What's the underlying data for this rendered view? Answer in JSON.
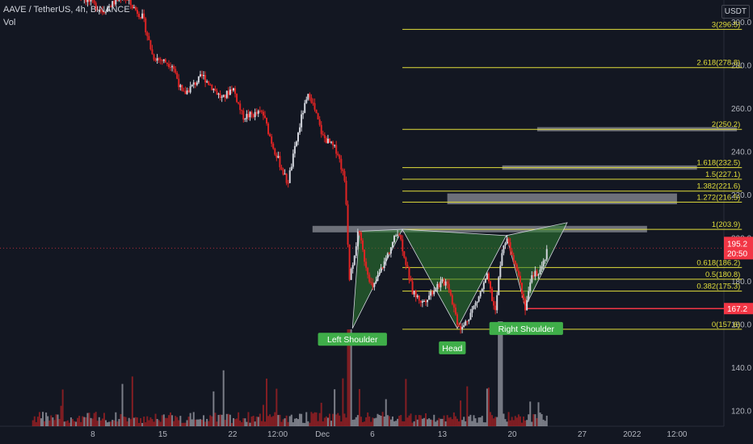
{
  "header": {
    "symbol_line": "AAVE / TetherUS, 4h, BINANCE",
    "vol_label": "Vol",
    "currency": "USDT"
  },
  "colors": {
    "bg": "#131722",
    "up": "#d1d4dc",
    "down": "#e02424",
    "fib": "#e3df3b",
    "pattern_fill": "#2e7d32",
    "pattern_stroke": "#d1d4dc",
    "label_green": "#3fae49",
    "red_line": "#f23645",
    "axis_text": "#b2b5be",
    "grey_box": "#8c8f97"
  },
  "chart_data": {
    "type": "candlestick",
    "y_axis": {
      "min": 116,
      "max": 306,
      "ticks": [
        120,
        140,
        160,
        180,
        200,
        220,
        240,
        260,
        280,
        300
      ]
    },
    "x_axis": {
      "labels": [
        {
          "text": "8",
          "day": 8
        },
        {
          "text": "15",
          "day": 15
        },
        {
          "text": "22",
          "day": 22
        },
        {
          "text": "12:00",
          "day": 26.5
        },
        {
          "text": "Dec",
          "day": 31
        },
        {
          "text": "6",
          "day": 36
        },
        {
          "text": "13",
          "day": 43
        },
        {
          "text": "20",
          "day": 50
        },
        {
          "text": "27",
          "day": 57
        },
        {
          "text": "2022",
          "day": 62
        },
        {
          "text": "12:00",
          "day": 66.5
        }
      ]
    },
    "price_path": [
      {
        "day": 2,
        "price": 320
      },
      {
        "day": 5,
        "price": 318
      },
      {
        "day": 9,
        "price": 305
      },
      {
        "day": 11,
        "price": 312
      },
      {
        "day": 13,
        "price": 302
      },
      {
        "day": 14,
        "price": 284
      },
      {
        "day": 16,
        "price": 280
      },
      {
        "day": 17,
        "price": 266
      },
      {
        "day": 19,
        "price": 275
      },
      {
        "day": 21,
        "price": 264
      },
      {
        "day": 22,
        "price": 270
      },
      {
        "day": 23,
        "price": 256
      },
      {
        "day": 25,
        "price": 258
      },
      {
        "day": 26,
        "price": 243
      },
      {
        "day": 27.5,
        "price": 225
      },
      {
        "day": 29,
        "price": 258
      },
      {
        "day": 29.7,
        "price": 267
      },
      {
        "day": 31,
        "price": 247
      },
      {
        "day": 32.5,
        "price": 240
      },
      {
        "day": 33.3,
        "price": 225
      },
      {
        "day": 33.7,
        "price": 180
      },
      {
        "day": 34.6,
        "price": 203
      },
      {
        "day": 35.2,
        "price": 190
      },
      {
        "day": 36,
        "price": 176
      },
      {
        "day": 37.5,
        "price": 192
      },
      {
        "day": 38.6,
        "price": 203.9
      },
      {
        "day": 40,
        "price": 175
      },
      {
        "day": 41,
        "price": 170
      },
      {
        "day": 42.5,
        "price": 178
      },
      {
        "day": 43.5,
        "price": 180
      },
      {
        "day": 44.5,
        "price": 161
      },
      {
        "day": 45,
        "price": 158
      },
      {
        "day": 46.5,
        "price": 171
      },
      {
        "day": 47.5,
        "price": 182
      },
      {
        "day": 48.3,
        "price": 165
      },
      {
        "day": 48.8,
        "price": 188
      },
      {
        "day": 49.4,
        "price": 201
      },
      {
        "day": 50.5,
        "price": 186
      },
      {
        "day": 51.3,
        "price": 168
      },
      {
        "day": 52,
        "price": 182
      },
      {
        "day": 53,
        "price": 186
      },
      {
        "day": 53.6,
        "price": 195.2
      }
    ],
    "fib_levels": [
      {
        "label": "3(296.5)",
        "value": 296.5
      },
      {
        "label": "2.618(278.8)",
        "value": 278.8
      },
      {
        "label": "2(250.2)",
        "value": 250.2
      },
      {
        "label": "1.618(232.5)",
        "value": 232.5
      },
      {
        "label": "1.5(227.1)",
        "value": 227.1
      },
      {
        "label": "1.382(221.6)",
        "value": 221.6
      },
      {
        "label": "1.272(216.5)",
        "value": 216.5
      },
      {
        "label": "1(203.9)",
        "value": 203.9
      },
      {
        "label": "0.618(186.2)",
        "value": 186.2
      },
      {
        "label": "0.5(180.8)",
        "value": 180.8
      },
      {
        "label": "0.382(175.3)",
        "value": 175.3
      },
      {
        "label": "0(157.6)",
        "value": 157.6
      }
    ],
    "fib_day_range": [
      39,
      73
    ],
    "grey_boxes": [
      {
        "day_start": 30,
        "day_end": 63.5,
        "low": 202.5,
        "high": 205.5
      },
      {
        "day_start": 43.5,
        "day_end": 66.5,
        "low": 215.5,
        "high": 220.5
      },
      {
        "day_start": 49,
        "day_end": 68.5,
        "low": 231.5,
        "high": 233.5
      },
      {
        "day_start": 52.5,
        "day_end": 72.5,
        "low": 249.3,
        "high": 251.2
      }
    ],
    "pattern": {
      "labels": [
        {
          "text": "Left Shoulder",
          "day": 34,
          "price": 156
        },
        {
          "text": "Head",
          "day": 44,
          "price": 152
        },
        {
          "text": "Right Shoulder",
          "day": 51.4,
          "price": 161
        }
      ],
      "triangles": [
        {
          "points": [
            [
              34,
              158
            ],
            [
              34.7,
              203
            ],
            [
              39,
              203.9
            ]
          ]
        },
        {
          "points": [
            [
              39,
              203.9
            ],
            [
              44.5,
              158
            ],
            [
              49.4,
              201
            ]
          ]
        },
        {
          "points": [
            [
              49.4,
              201
            ],
            [
              51.3,
              168
            ],
            [
              55.5,
              207
            ]
          ]
        }
      ]
    },
    "price_marks": [
      {
        "label": "195.2",
        "value": 195.2,
        "color": "#f23645"
      },
      {
        "label": "20:50",
        "value": 193.0,
        "color": "#f23645"
      },
      {
        "label": "167.2",
        "value": 167.2,
        "color": "#f23645"
      }
    ],
    "red_level": {
      "value": 167.2,
      "day_start": 51.3
    }
  }
}
